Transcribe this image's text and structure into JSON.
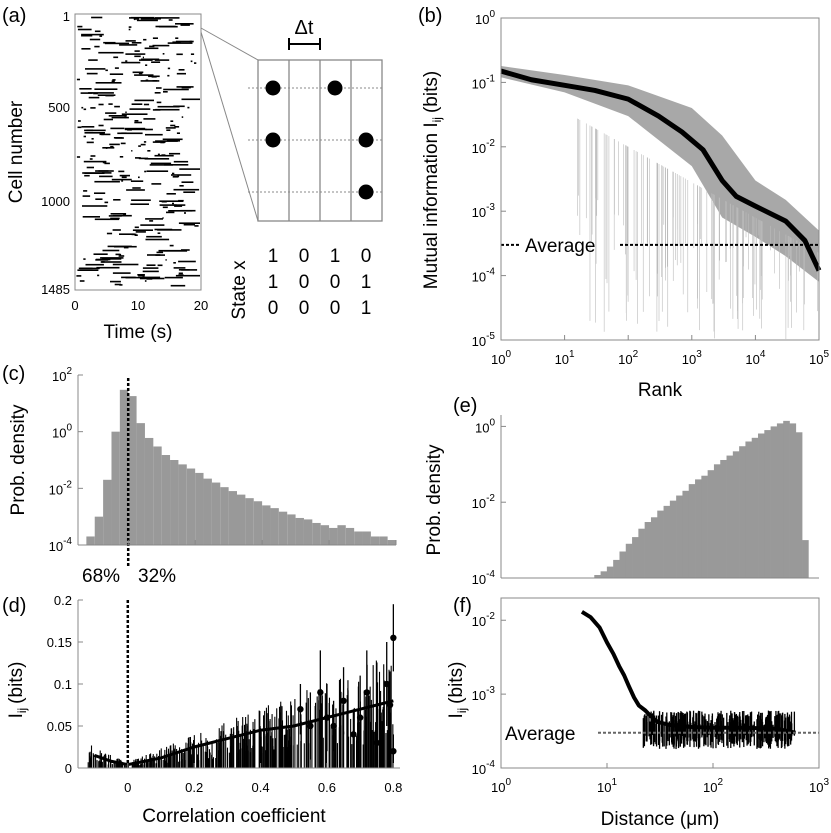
{
  "chart_data": [
    {
      "panel": "(a)",
      "type": "raster",
      "ylabel": "Cell number",
      "xlabel": "Time (s)",
      "y_ticks": [
        "1",
        "500",
        "1000",
        "1485"
      ],
      "x_ticks": [
        "0",
        "10",
        "20"
      ],
      "xlim": [
        0,
        20
      ],
      "ylim": [
        1,
        1485
      ],
      "inset": {
        "dt_label": "Δt",
        "state_label": "State x",
        "rows": [
          [
            1,
            0,
            1,
            0
          ],
          [
            1,
            0,
            0,
            1
          ],
          [
            0,
            0,
            0,
            1
          ]
        ]
      }
    },
    {
      "panel": "(b)",
      "type": "line",
      "title": "",
      "xlabel": "Rank",
      "ylabel": "Mutual information I",
      "ylabel_sub": "ij",
      "ylabel_unit": "(bits)",
      "xscale": "log",
      "yscale": "log",
      "xlim": [
        1,
        100000
      ],
      "ylim": [
        1e-05,
        1
      ],
      "x_ticks": [
        {
          "b": "10",
          "e": "0"
        },
        {
          "b": "10",
          "e": "1"
        },
        {
          "b": "10",
          "e": "2"
        },
        {
          "b": "10",
          "e": "3"
        },
        {
          "b": "10",
          "e": "4"
        },
        {
          "b": "10",
          "e": "5"
        }
      ],
      "y_ticks": [
        {
          "b": "10",
          "e": "-5"
        },
        {
          "b": "10",
          "e": "-4"
        },
        {
          "b": "10",
          "e": "-3"
        },
        {
          "b": "10",
          "e": "-2"
        },
        {
          "b": "10",
          "e": "-1"
        },
        {
          "b": "10",
          "e": "0"
        }
      ],
      "series": [
        {
          "name": "mean",
          "x": [
            1,
            3,
            10,
            30,
            100,
            300,
            700,
            1500,
            3000,
            5000,
            10000,
            30000,
            60000,
            100000
          ],
          "y": [
            0.15,
            0.11,
            0.09,
            0.075,
            0.055,
            0.03,
            0.017,
            0.009,
            0.003,
            0.0017,
            0.0012,
            0.0007,
            0.00035,
            0.00012
          ]
        }
      ],
      "band": {
        "x": [
          1,
          10,
          100,
          1000,
          3000,
          10000,
          30000,
          100000
        ],
        "upper": [
          0.18,
          0.13,
          0.09,
          0.04,
          0.015,
          0.003,
          0.0015,
          0.0005
        ],
        "lower": [
          0.12,
          0.07,
          0.03,
          0.005,
          0.0008,
          0.0004,
          0.0002,
          8e-05
        ]
      },
      "average": {
        "label": "Average",
        "value": 0.0003
      }
    },
    {
      "panel": "(c)",
      "type": "bar",
      "ylabel": "Prob. density",
      "yscale": "log",
      "xlim": [
        -0.15,
        0.8
      ],
      "ylim": [
        0.0001,
        100
      ],
      "y_ticks": [
        {
          "b": "10",
          "e": "-4"
        },
        {
          "b": "10",
          "e": "-2"
        },
        {
          "b": "10",
          "e": "0"
        },
        {
          "b": "10",
          "e": "2"
        }
      ],
      "bin_width": 0.025,
      "bin_start": -0.125,
      "values": [
        0.0002,
        0.001,
        0.02,
        1,
        30,
        18,
        2,
        0.6,
        0.3,
        0.15,
        0.1,
        0.07,
        0.05,
        0.035,
        0.022,
        0.016,
        0.011,
        0.008,
        0.006,
        0.0045,
        0.0035,
        0.0025,
        0.002,
        0.0015,
        0.0012,
        0.0009,
        0.0008,
        0.0006,
        0.0005,
        0.0004,
        0.0005,
        0.0004,
        0.0003,
        0.0003,
        0.0002,
        0.0002,
        0.00015
      ],
      "zero_line": 0,
      "annotations": [
        "68%",
        "32%"
      ]
    },
    {
      "panel": "(d)",
      "type": "scatter",
      "xlabel": "Correlation coefficient",
      "ylabel": "I",
      "ylabel_sub": "ij",
      "ylabel_unit": "(bits)",
      "xlim": [
        -0.15,
        0.82
      ],
      "ylim": [
        0,
        0.2
      ],
      "x_ticks": [
        "0",
        "0.2",
        "0.4",
        "0.6",
        "0.8"
      ],
      "x_tick_values": [
        0,
        0.2,
        0.4,
        0.6,
        0.8
      ],
      "y_ticks": [
        "0",
        "0.05",
        "0.1",
        "0.15",
        "0.2"
      ],
      "y_tick_values": [
        0,
        0.05,
        0.1,
        0.15,
        0.2
      ],
      "trend": {
        "x": [
          -0.1,
          -0.05,
          0,
          0.1,
          0.2,
          0.3,
          0.4,
          0.5,
          0.6,
          0.7,
          0.8
        ],
        "y": [
          0.015,
          0.008,
          0.004,
          0.012,
          0.025,
          0.035,
          0.045,
          0.05,
          0.06,
          0.07,
          0.08
        ]
      },
      "points": [
        {
          "x": 0.52,
          "y": 0.07,
          "err": 0.03
        },
        {
          "x": 0.55,
          "y": 0.05,
          "err": 0.04
        },
        {
          "x": 0.58,
          "y": 0.09,
          "err": 0.05
        },
        {
          "x": 0.6,
          "y": 0.06,
          "err": 0.04
        },
        {
          "x": 0.62,
          "y": 0.05,
          "err": 0.03
        },
        {
          "x": 0.65,
          "y": 0.08,
          "err": 0.04
        },
        {
          "x": 0.68,
          "y": 0.04,
          "err": 0.03
        },
        {
          "x": 0.7,
          "y": 0.06,
          "err": 0.05
        },
        {
          "x": 0.72,
          "y": 0.09,
          "err": 0.05
        },
        {
          "x": 0.75,
          "y": 0.03,
          "err": 0.03
        },
        {
          "x": 0.78,
          "y": 0.1,
          "err": 0.05
        },
        {
          "x": 0.8,
          "y": 0.155,
          "err": 0.04
        },
        {
          "x": 0.8,
          "y": 0.02,
          "err": 0.02
        },
        {
          "x": 0.79,
          "y": 0.075,
          "err": 0.04
        }
      ],
      "zero_line": 0
    },
    {
      "panel": "(e)",
      "type": "bar",
      "ylabel": "Prob. density",
      "xscale": "log",
      "yscale": "log",
      "xlim": [
        1,
        1000
      ],
      "ylim": [
        0.0001,
        2
      ],
      "y_ticks": [
        {
          "b": "10",
          "e": "-4"
        },
        {
          "b": "10",
          "e": "-2"
        },
        {
          "b": "10",
          "e": "0"
        }
      ],
      "bin_edges_log": [
        0.88,
        2.9
      ],
      "values": [
        0.00012,
        0.00015,
        0.0002,
        0.0003,
        0.0005,
        0.0008,
        0.0012,
        0.002,
        0.003,
        0.004,
        0.006,
        0.008,
        0.011,
        0.015,
        0.02,
        0.03,
        0.04,
        0.05,
        0.07,
        0.1,
        0.13,
        0.17,
        0.22,
        0.3,
        0.4,
        0.5,
        0.65,
        0.8,
        1.0,
        1.2,
        1.4,
        1.2,
        0.7,
        0.001
      ]
    },
    {
      "panel": "(f)",
      "type": "line",
      "xlabel": "Distance (",
      "xlabel_mu": "μ",
      "xlabel_end": "m)",
      "ylabel": "I",
      "ylabel_sub": "ij",
      "ylabel_unit": "(bits)",
      "xscale": "log",
      "yscale": "log",
      "xlim": [
        1,
        1000
      ],
      "ylim": [
        0.0001,
        0.02
      ],
      "x_ticks": [
        {
          "b": "10",
          "e": "0"
        },
        {
          "b": "10",
          "e": "1"
        },
        {
          "b": "10",
          "e": "2"
        },
        {
          "b": "10",
          "e": "3"
        }
      ],
      "y_ticks": [
        {
          "b": "10",
          "e": "-4"
        },
        {
          "b": "10",
          "e": "-3"
        },
        {
          "b": "10",
          "e": "-2"
        }
      ],
      "series": [
        {
          "name": "Iij vs distance",
          "x": [
            5.8,
            7,
            8.5,
            10,
            11.5,
            13,
            14.5,
            16,
            18,
            20,
            23,
            26,
            30,
            40,
            60,
            100,
            200,
            400,
            600
          ],
          "y": [
            0.013,
            0.011,
            0.008,
            0.005,
            0.0035,
            0.0024,
            0.0018,
            0.0013,
            0.0009,
            0.0007,
            0.0006,
            0.0005,
            0.00042,
            0.00038,
            0.00036,
            0.00035,
            0.00035,
            0.00034,
            0.0003
          ]
        }
      ],
      "average": {
        "label": "Average",
        "value": 0.0003
      }
    }
  ],
  "labels": {
    "a": "(a)",
    "b": "(b)",
    "c": "(c)",
    "d": "(d)",
    "e": "(e)",
    "f": "(f)"
  }
}
